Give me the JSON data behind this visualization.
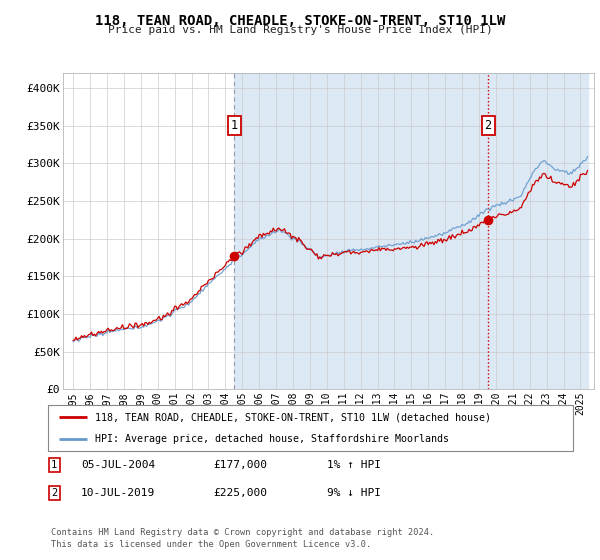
{
  "title": "118, TEAN ROAD, CHEADLE, STOKE-ON-TRENT, ST10 1LW",
  "subtitle": "Price paid vs. HM Land Registry's House Price Index (HPI)",
  "legend_line1": "118, TEAN ROAD, CHEADLE, STOKE-ON-TRENT, ST10 1LW (detached house)",
  "legend_line2": "HPI: Average price, detached house, Staffordshire Moorlands",
  "transaction1_date": "05-JUL-2004",
  "transaction1_price": "£177,000",
  "transaction1_hpi": "1% ↑ HPI",
  "transaction2_date": "10-JUL-2019",
  "transaction2_price": "£225,000",
  "transaction2_hpi": "9% ↓ HPI",
  "footer": "Contains HM Land Registry data © Crown copyright and database right 2024.\nThis data is licensed under the Open Government Licence v3.0.",
  "ylim": [
    0,
    420000
  ],
  "yticks": [
    0,
    50000,
    100000,
    150000,
    200000,
    250000,
    300000,
    350000,
    400000
  ],
  "ytick_labels": [
    "£0",
    "£50K",
    "£100K",
    "£150K",
    "£200K",
    "£250K",
    "£300K",
    "£350K",
    "£400K"
  ],
  "sale_color": "#cc0000",
  "hpi_color": "#6699cc",
  "hpi_fill_color": "#dce9f5",
  "vline1_color": "#9999aa",
  "vline2_color": "#cc0000",
  "background_color": "#ffffff",
  "grid_color": "#cccccc",
  "sale1_year": 2004.54,
  "sale1_price": 177000,
  "sale2_year": 2019.54,
  "sale2_price": 225000
}
